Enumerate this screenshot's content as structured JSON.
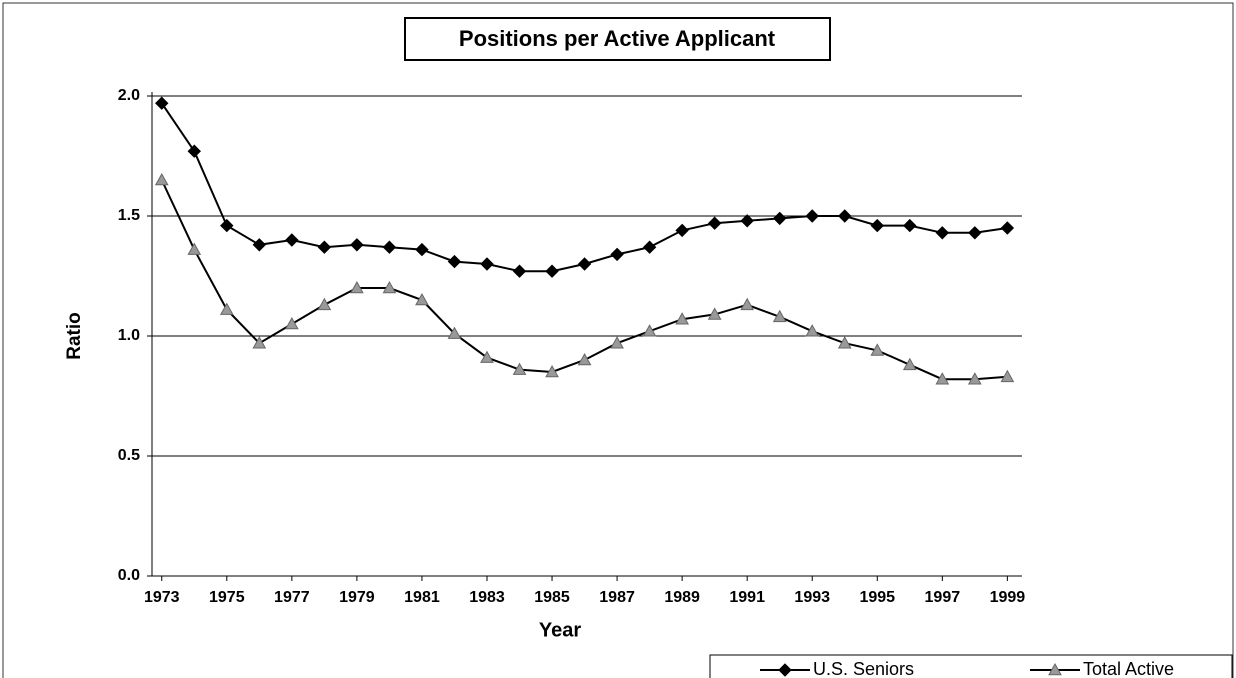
{
  "chart_data": {
    "type": "line",
    "title": "Positions per Active Applicant",
    "x_label": "Year",
    "y_label": "Ratio",
    "x": [
      1973,
      1974,
      1975,
      1976,
      1977,
      1978,
      1979,
      1980,
      1981,
      1982,
      1983,
      1984,
      1985,
      1986,
      1987,
      1988,
      1989,
      1990,
      1991,
      1992,
      1993,
      1994,
      1995,
      1996,
      1997,
      1998,
      1999
    ],
    "series": [
      {
        "name": "U.S. Seniors",
        "color": "#000000",
        "marker": "diamond",
        "values": [
          1.97,
          1.77,
          1.46,
          1.38,
          1.4,
          1.37,
          1.38,
          1.37,
          1.36,
          1.31,
          1.3,
          1.27,
          1.27,
          1.3,
          1.34,
          1.37,
          1.44,
          1.47,
          1.48,
          1.49,
          1.5,
          1.5,
          1.46,
          1.46,
          1.43,
          1.43,
          1.45
        ]
      },
      {
        "name": "Total Active",
        "color": "#999999",
        "marker": "triangle",
        "values": [
          1.65,
          1.36,
          1.11,
          0.97,
          1.05,
          1.13,
          1.2,
          1.2,
          1.15,
          1.01,
          0.91,
          0.86,
          0.85,
          0.9,
          0.97,
          1.02,
          1.07,
          1.09,
          1.13,
          1.08,
          1.02,
          0.97,
          0.94,
          0.88,
          0.82,
          0.82,
          0.83
        ]
      }
    ],
    "xlim": [
      1972.7,
      1999.45
    ],
    "xticks": [
      1973,
      1975,
      1977,
      1979,
      1981,
      1983,
      1985,
      1987,
      1989,
      1991,
      1993,
      1995,
      1997,
      1999
    ],
    "ylim": [
      0,
      2
    ],
    "yticks": [
      {
        "value": 0,
        "label": "0.0"
      },
      {
        "value": 0.5,
        "label": "0.5"
      },
      {
        "value": 1,
        "label": "1.0"
      },
      {
        "value": 1.5,
        "label": "1.5"
      },
      {
        "value": 2,
        "label": "2.0"
      }
    ],
    "grid": true,
    "legend": "bottom-right"
  }
}
